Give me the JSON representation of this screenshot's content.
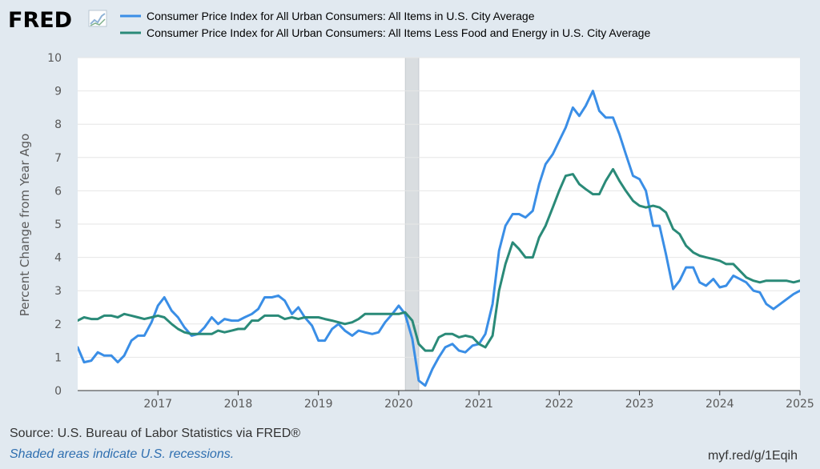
{
  "header": {
    "logo": "FRED"
  },
  "footer": {
    "source": "Source: U.S. Bureau of Labor Statistics via FRED®",
    "shaded_note": "Shaded areas indicate U.S. recessions.",
    "short_url": "myf.red/g/1Eqih"
  },
  "colors": {
    "background": "#e1e9f0",
    "plot_bg": "#ffffff",
    "recession": "#d9dde0",
    "grid": "#e6e6e6"
  },
  "icons": {
    "logo_graph": "line-chart-icon"
  },
  "chart_data": {
    "type": "line",
    "ylabel": "Percent Change from Year Ago",
    "xlabel": "",
    "ylim": [
      0,
      10
    ],
    "y_ticks": [
      0,
      1,
      2,
      3,
      4,
      5,
      6,
      7,
      8,
      9,
      10
    ],
    "x_range": [
      2016.0,
      2025.0
    ],
    "x_ticks": [
      2017,
      2018,
      2019,
      2020,
      2021,
      2022,
      2023,
      2024,
      2025
    ],
    "grid": true,
    "legend": "top",
    "recessions": [
      {
        "start": 2020.0833,
        "end": 2020.25
      }
    ],
    "series": [
      {
        "name": "Consumer Price Index for All Urban Consumers: All Items in U.S. City Average",
        "color": "#3a8ee6",
        "points": [
          [
            2016.0,
            1.3
          ],
          [
            2016.08,
            0.85
          ],
          [
            2016.17,
            0.9
          ],
          [
            2016.25,
            1.15
          ],
          [
            2016.33,
            1.05
          ],
          [
            2016.42,
            1.05
          ],
          [
            2016.5,
            0.85
          ],
          [
            2016.58,
            1.05
          ],
          [
            2016.67,
            1.5
          ],
          [
            2016.75,
            1.65
          ],
          [
            2016.83,
            1.65
          ],
          [
            2016.92,
            2.05
          ],
          [
            2017.0,
            2.55
          ],
          [
            2017.08,
            2.8
          ],
          [
            2017.17,
            2.4
          ],
          [
            2017.25,
            2.2
          ],
          [
            2017.33,
            1.9
          ],
          [
            2017.42,
            1.65
          ],
          [
            2017.5,
            1.7
          ],
          [
            2017.58,
            1.9
          ],
          [
            2017.67,
            2.2
          ],
          [
            2017.75,
            2.0
          ],
          [
            2017.83,
            2.15
          ],
          [
            2017.92,
            2.1
          ],
          [
            2018.0,
            2.1
          ],
          [
            2018.08,
            2.2
          ],
          [
            2018.17,
            2.3
          ],
          [
            2018.25,
            2.45
          ],
          [
            2018.33,
            2.8
          ],
          [
            2018.42,
            2.8
          ],
          [
            2018.5,
            2.85
          ],
          [
            2018.58,
            2.7
          ],
          [
            2018.67,
            2.3
          ],
          [
            2018.75,
            2.5
          ],
          [
            2018.83,
            2.2
          ],
          [
            2018.92,
            1.95
          ],
          [
            2019.0,
            1.5
          ],
          [
            2019.08,
            1.5
          ],
          [
            2019.17,
            1.85
          ],
          [
            2019.25,
            2.0
          ],
          [
            2019.33,
            1.8
          ],
          [
            2019.42,
            1.65
          ],
          [
            2019.5,
            1.8
          ],
          [
            2019.58,
            1.75
          ],
          [
            2019.67,
            1.7
          ],
          [
            2019.75,
            1.75
          ],
          [
            2019.83,
            2.05
          ],
          [
            2019.92,
            2.3
          ],
          [
            2020.0,
            2.55
          ],
          [
            2020.08,
            2.3
          ],
          [
            2020.17,
            1.55
          ],
          [
            2020.25,
            0.3
          ],
          [
            2020.33,
            0.15
          ],
          [
            2020.42,
            0.65
          ],
          [
            2020.5,
            1.0
          ],
          [
            2020.58,
            1.3
          ],
          [
            2020.67,
            1.4
          ],
          [
            2020.75,
            1.2
          ],
          [
            2020.83,
            1.15
          ],
          [
            2020.92,
            1.35
          ],
          [
            2021.0,
            1.4
          ],
          [
            2021.08,
            1.7
          ],
          [
            2021.17,
            2.6
          ],
          [
            2021.25,
            4.2
          ],
          [
            2021.33,
            4.95
          ],
          [
            2021.42,
            5.3
          ],
          [
            2021.5,
            5.3
          ],
          [
            2021.58,
            5.2
          ],
          [
            2021.67,
            5.4
          ],
          [
            2021.75,
            6.2
          ],
          [
            2021.83,
            6.8
          ],
          [
            2021.92,
            7.1
          ],
          [
            2022.0,
            7.5
          ],
          [
            2022.08,
            7.9
          ],
          [
            2022.17,
            8.5
          ],
          [
            2022.25,
            8.25
          ],
          [
            2022.33,
            8.55
          ],
          [
            2022.42,
            9.0
          ],
          [
            2022.5,
            8.4
          ],
          [
            2022.58,
            8.2
          ],
          [
            2022.67,
            8.2
          ],
          [
            2022.75,
            7.7
          ],
          [
            2022.83,
            7.1
          ],
          [
            2022.92,
            6.45
          ],
          [
            2023.0,
            6.35
          ],
          [
            2023.08,
            6.0
          ],
          [
            2023.17,
            4.95
          ],
          [
            2023.25,
            4.95
          ],
          [
            2023.33,
            4.1
          ],
          [
            2023.42,
            3.05
          ],
          [
            2023.5,
            3.3
          ],
          [
            2023.58,
            3.7
          ],
          [
            2023.67,
            3.7
          ],
          [
            2023.75,
            3.25
          ],
          [
            2023.83,
            3.15
          ],
          [
            2023.92,
            3.35
          ],
          [
            2024.0,
            3.1
          ],
          [
            2024.08,
            3.15
          ],
          [
            2024.17,
            3.45
          ],
          [
            2024.25,
            3.35
          ],
          [
            2024.33,
            3.25
          ],
          [
            2024.42,
            3.0
          ],
          [
            2024.5,
            2.95
          ],
          [
            2024.58,
            2.6
          ],
          [
            2024.67,
            2.45
          ],
          [
            2024.92,
            2.9
          ],
          [
            2025.0,
            3.0
          ],
          [
            2025.08,
            2.8
          ]
        ]
      },
      {
        "name": "Consumer Price Index for All Urban Consumers: All Items Less Food and Energy in U.S. City Average",
        "color": "#2a8a78",
        "points": [
          [
            2016.0,
            2.1
          ],
          [
            2016.08,
            2.2
          ],
          [
            2016.17,
            2.15
          ],
          [
            2016.25,
            2.15
          ],
          [
            2016.33,
            2.25
          ],
          [
            2016.42,
            2.25
          ],
          [
            2016.5,
            2.2
          ],
          [
            2016.58,
            2.3
          ],
          [
            2016.67,
            2.25
          ],
          [
            2016.75,
            2.2
          ],
          [
            2016.83,
            2.15
          ],
          [
            2016.92,
            2.2
          ],
          [
            2017.0,
            2.25
          ],
          [
            2017.08,
            2.2
          ],
          [
            2017.17,
            2.0
          ],
          [
            2017.25,
            1.85
          ],
          [
            2017.33,
            1.75
          ],
          [
            2017.42,
            1.7
          ],
          [
            2017.5,
            1.7
          ],
          [
            2017.58,
            1.7
          ],
          [
            2017.67,
            1.7
          ],
          [
            2017.75,
            1.8
          ],
          [
            2017.83,
            1.75
          ],
          [
            2017.92,
            1.8
          ],
          [
            2018.0,
            1.85
          ],
          [
            2018.08,
            1.85
          ],
          [
            2018.17,
            2.1
          ],
          [
            2018.25,
            2.1
          ],
          [
            2018.33,
            2.25
          ],
          [
            2018.42,
            2.25
          ],
          [
            2018.5,
            2.25
          ],
          [
            2018.58,
            2.15
          ],
          [
            2018.67,
            2.2
          ],
          [
            2018.75,
            2.15
          ],
          [
            2018.83,
            2.2
          ],
          [
            2018.92,
            2.2
          ],
          [
            2019.0,
            2.2
          ],
          [
            2019.08,
            2.15
          ],
          [
            2019.17,
            2.1
          ],
          [
            2019.25,
            2.05
          ],
          [
            2019.33,
            2.0
          ],
          [
            2019.42,
            2.05
          ],
          [
            2019.5,
            2.15
          ],
          [
            2019.58,
            2.3
          ],
          [
            2019.67,
            2.3
          ],
          [
            2019.75,
            2.3
          ],
          [
            2019.83,
            2.3
          ],
          [
            2019.92,
            2.3
          ],
          [
            2020.0,
            2.3
          ],
          [
            2020.08,
            2.35
          ],
          [
            2020.17,
            2.1
          ],
          [
            2020.25,
            1.4
          ],
          [
            2020.33,
            1.2
          ],
          [
            2020.42,
            1.2
          ],
          [
            2020.5,
            1.6
          ],
          [
            2020.58,
            1.7
          ],
          [
            2020.67,
            1.7
          ],
          [
            2020.75,
            1.6
          ],
          [
            2020.83,
            1.65
          ],
          [
            2020.92,
            1.6
          ],
          [
            2021.0,
            1.4
          ],
          [
            2021.08,
            1.3
          ],
          [
            2021.17,
            1.65
          ],
          [
            2021.25,
            3.0
          ],
          [
            2021.33,
            3.8
          ],
          [
            2021.42,
            4.45
          ],
          [
            2021.5,
            4.25
          ],
          [
            2021.58,
            4.0
          ],
          [
            2021.67,
            4.0
          ],
          [
            2021.75,
            4.6
          ],
          [
            2021.83,
            4.95
          ],
          [
            2021.92,
            5.5
          ],
          [
            2022.0,
            6.0
          ],
          [
            2022.08,
            6.45
          ],
          [
            2022.17,
            6.5
          ],
          [
            2022.25,
            6.2
          ],
          [
            2022.33,
            6.05
          ],
          [
            2022.42,
            5.9
          ],
          [
            2022.5,
            5.9
          ],
          [
            2022.58,
            6.3
          ],
          [
            2022.67,
            6.65
          ],
          [
            2022.75,
            6.3
          ],
          [
            2022.83,
            6.0
          ],
          [
            2022.92,
            5.7
          ],
          [
            2023.0,
            5.55
          ],
          [
            2023.08,
            5.5
          ],
          [
            2023.17,
            5.55
          ],
          [
            2023.25,
            5.5
          ],
          [
            2023.33,
            5.35
          ],
          [
            2023.42,
            4.85
          ],
          [
            2023.5,
            4.7
          ],
          [
            2023.58,
            4.35
          ],
          [
            2023.67,
            4.15
          ],
          [
            2023.75,
            4.05
          ],
          [
            2023.83,
            4.0
          ],
          [
            2023.92,
            3.95
          ],
          [
            2024.0,
            3.9
          ],
          [
            2024.08,
            3.8
          ],
          [
            2024.17,
            3.8
          ],
          [
            2024.25,
            3.6
          ],
          [
            2024.33,
            3.4
          ],
          [
            2024.42,
            3.3
          ],
          [
            2024.5,
            3.25
          ],
          [
            2024.58,
            3.3
          ],
          [
            2024.67,
            3.3
          ],
          [
            2024.75,
            3.3
          ],
          [
            2024.83,
            3.3
          ],
          [
            2024.92,
            3.25
          ],
          [
            2025.0,
            3.3
          ],
          [
            2025.08,
            3.15
          ]
        ]
      }
    ]
  }
}
